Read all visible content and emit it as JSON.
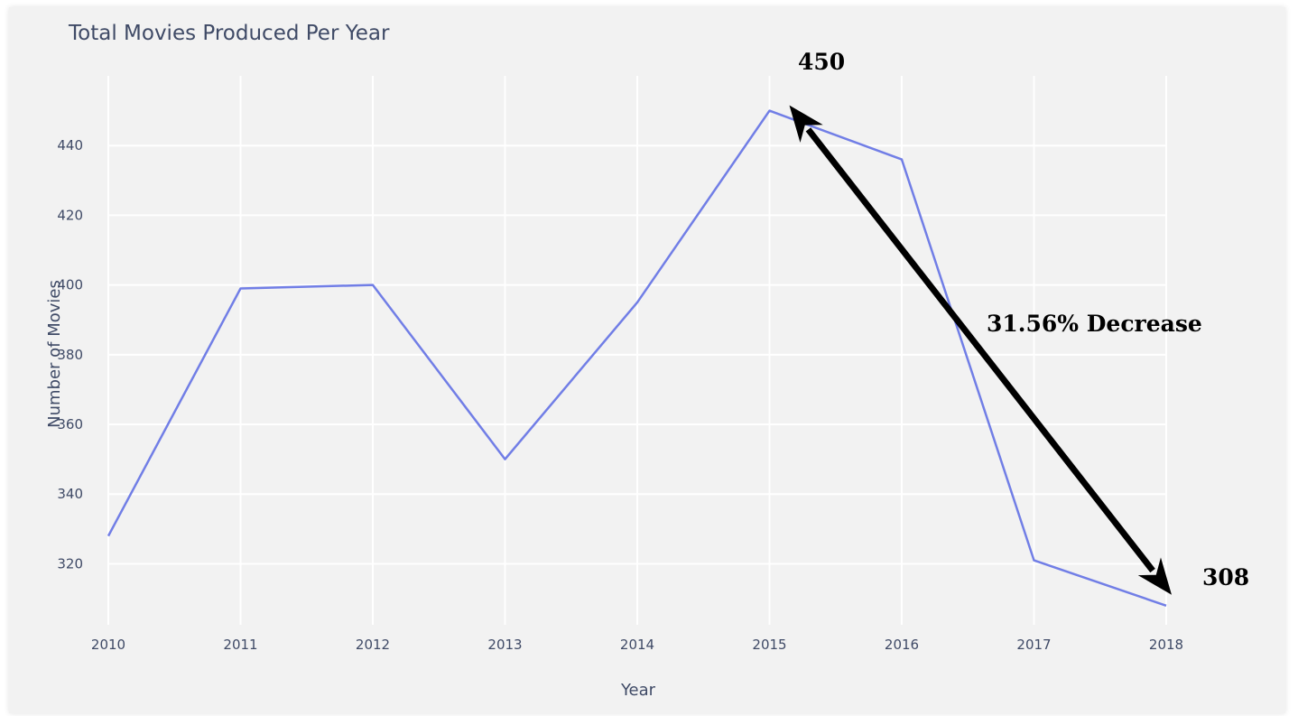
{
  "chart_data": {
    "type": "line",
    "title": "Total Movies Produced Per Year",
    "xlabel": "Year",
    "ylabel": "Number of Movies",
    "x": [
      2010,
      2011,
      2012,
      2013,
      2014,
      2015,
      2016,
      2017,
      2018
    ],
    "x_tick_labels": [
      "2010",
      "2011",
      "2012",
      "2013",
      "2014",
      "2015",
      "2016",
      "2017",
      "2018"
    ],
    "y_tick_values": [
      320,
      340,
      360,
      380,
      400,
      420,
      440
    ],
    "y_tick_labels": [
      "320",
      "340",
      "360",
      "380",
      "400",
      "420",
      "440"
    ],
    "series": [
      {
        "values": [
          328,
          399,
          400,
          350,
          395,
          450,
          436,
          321,
          308
        ],
        "color": "#717ee6"
      }
    ],
    "xlim": [
      2010,
      2018
    ],
    "ylim": [
      302.5,
      460
    ],
    "grid": true,
    "background_color": "#f2f2f2",
    "grid_color": "#ffffff",
    "annotations": {
      "peak_label": "450",
      "end_label": "308",
      "change_label": "31.56% Decrease",
      "arrow": {
        "from": [
          2018,
          308
        ],
        "to": [
          2015,
          450
        ],
        "style": "double-headed",
        "color": "#000000"
      }
    }
  }
}
